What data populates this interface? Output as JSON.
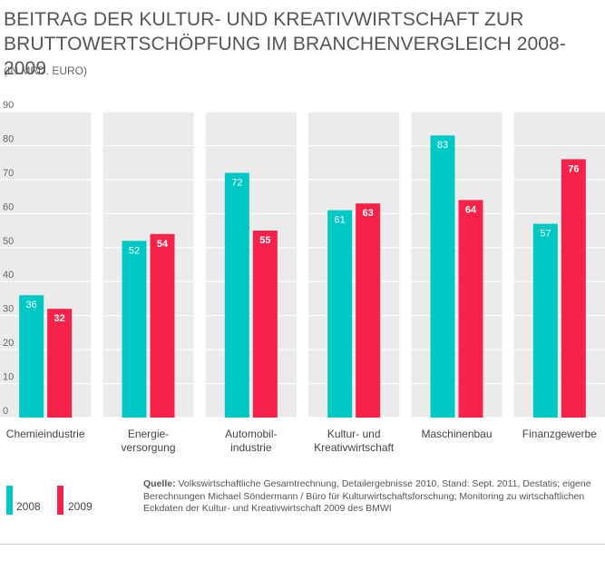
{
  "title": "BEITRAG DER KULTUR- UND KREATIVWIRTSCHAFT ZUR BRUTTOWERTSCHÖPFUNG IM BRANCHENVERGLEICH 2008-2009",
  "subtitle": "(IN MRD. EURO)",
  "legend": [
    {
      "name": "2008",
      "color": "#00c8c4"
    },
    {
      "name": "2009",
      "color": "#f7224a"
    }
  ],
  "source": {
    "label": "Quelle:",
    "text": " Volkswirtschaftliche Gesamtrechnung, Detailergebnisse 2010, Stand: Sept. 2011, Destatis; eigene Berechnungen Michael Söndermann / Büro für Kulturwirtschaftsforschung; Monitoring zu wirtschaftlichen Eckdaten der Kultur- und Kreativwirtschaft 2009 des BMWI"
  },
  "chart_data": {
    "type": "bar",
    "title": "BEITRAG DER KULTUR- UND KREATIVWIRTSCHAFT ZUR BRUTTOWERTSCHÖPFUNG IM BRANCHENVERGLEICH 2008-2009",
    "subtitle": "(IN MRD. EURO)",
    "xlabel": "",
    "ylabel": "",
    "ylim": [
      0,
      90
    ],
    "yticks": [
      0,
      10,
      20,
      30,
      40,
      50,
      60,
      70,
      80,
      90
    ],
    "grid": true,
    "legend_position": "bottom-left",
    "categories": [
      [
        "Chemieindustrie"
      ],
      [
        "Energie-",
        "versorgung"
      ],
      [
        "Automobil-",
        "industrie"
      ],
      [
        "Kultur- und",
        "Kreativwirtschaft"
      ],
      [
        "Maschinenbau"
      ],
      [
        "Finanzgewerbe"
      ]
    ],
    "series": [
      {
        "name": "2008",
        "color": "#00c8c4",
        "values": [
          36,
          52,
          72,
          61,
          83,
          57
        ]
      },
      {
        "name": "2009",
        "color": "#f7224a",
        "values": [
          32,
          54,
          55,
          63,
          64,
          76
        ]
      }
    ]
  }
}
